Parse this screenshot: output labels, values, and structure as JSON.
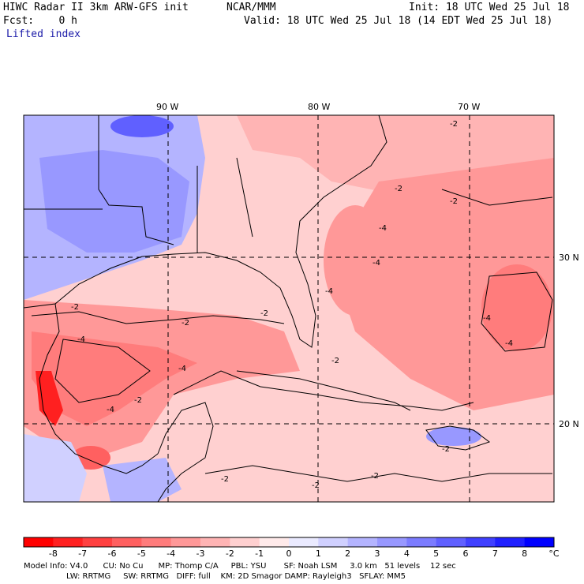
{
  "header": {
    "model_title": "HIWC Radar II 3km ARW-GFS init",
    "org": "NCAR/MMM",
    "init": "Init: 18 UTC Wed 25 Jul 18",
    "fcst": "Fcst:    0 h",
    "valid": "Valid: 18 UTC Wed 25 Jul 18 (14 EDT Wed 25 Jul 18)",
    "field": "Lifted index"
  },
  "map": {
    "lon_labels": [
      "90 W",
      "80 W",
      "70 W"
    ],
    "lat_labels": [
      "30 N",
      "20 N"
    ],
    "contour_label": "-2",
    "contour_label_4": "-4"
  },
  "colorbar": {
    "ticks": [
      "-8",
      "-7",
      "-6",
      "-5",
      "-4",
      "-3",
      "-2",
      "-1",
      "0",
      "1",
      "2",
      "3",
      "4",
      "5",
      "6",
      "7",
      "8"
    ],
    "unit": "°C",
    "colors": [
      "#ff0000",
      "#ff2020",
      "#ff4040",
      "#ff6060",
      "#ff7c7c",
      "#ff9898",
      "#ffb4b4",
      "#ffd0d0",
      "#ffeaea",
      "#eaeaff",
      "#d0d0ff",
      "#b4b4ff",
      "#9898ff",
      "#7c7cff",
      "#6060ff",
      "#4040ff",
      "#2020ff",
      "#0000ff"
    ]
  },
  "footer": {
    "line1": "Model Info: V4.0      CU: No Cu      MP: Thomp C/A     PBL: YSU       SF: Noah LSM     3.0 km   51 levels    12 sec",
    "line2": "                 LW: RRTMG     SW: RRTMG   DIFF: full    KM: 2D Smagor DAMP: Rayleigh3   SFLAY: MM5"
  }
}
